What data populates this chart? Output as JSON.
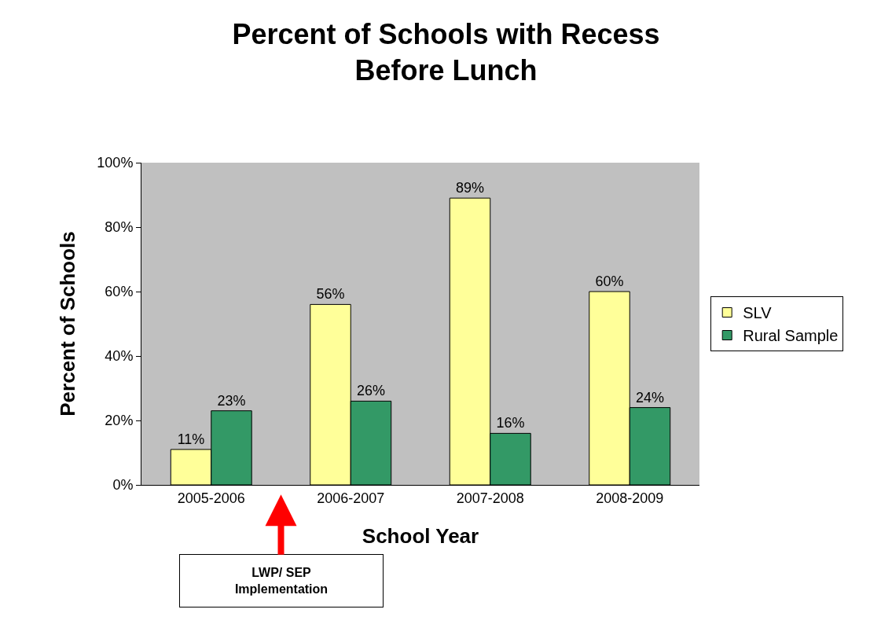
{
  "chart_data": {
    "type": "bar",
    "title": "Percent of Schools with Recess\nBefore Lunch",
    "xlabel": "School Year",
    "ylabel": "Percent of Schools",
    "categories": [
      "2005-2006",
      "2006-2007",
      "2007-2008",
      "2008-2009"
    ],
    "series": [
      {
        "name": "SLV",
        "color": "#ffff99",
        "values": [
          11,
          56,
          89,
          60
        ],
        "value_labels": [
          "11%",
          "56%",
          "89%",
          "60%"
        ]
      },
      {
        "name": "Rural Sample",
        "color": "#339966",
        "values": [
          23,
          26,
          16,
          24
        ],
        "value_labels": [
          "23%",
          "26%",
          "16%",
          "24%"
        ]
      }
    ],
    "ylim": [
      0,
      100
    ],
    "yticks": [
      {
        "value": 0,
        "label": "0%"
      },
      {
        "value": 20,
        "label": "20%"
      },
      {
        "value": 40,
        "label": "40%"
      },
      {
        "value": 60,
        "label": "60%"
      },
      {
        "value": 80,
        "label": "80%"
      },
      {
        "value": 100,
        "label": "100%"
      }
    ],
    "grid": false,
    "legend": "right",
    "annotations": [
      "LWP/ SEP\nImplementation"
    ]
  }
}
